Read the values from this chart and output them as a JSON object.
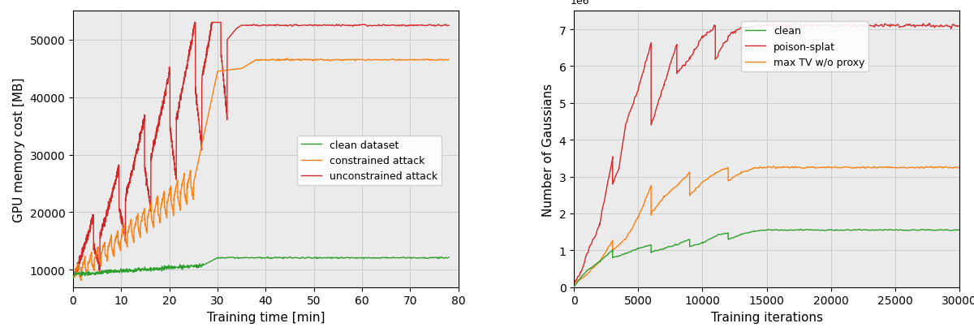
{
  "left": {
    "xlabel": "Training time [min]",
    "ylabel": "GPU memory cost [MB]",
    "xlim": [
      0,
      80
    ],
    "ylim": [
      7000,
      55000
    ],
    "xticks": [
      0,
      10,
      20,
      30,
      40,
      50,
      60,
      70,
      80
    ],
    "yticks": [
      10000,
      20000,
      30000,
      40000,
      50000
    ],
    "legend": [
      "clean dataset",
      "constrained attack",
      "unconstrained attack"
    ],
    "colors": [
      "#2ca02c",
      "#ff7f0e",
      "#d62728"
    ]
  },
  "right": {
    "xlabel": "Training iterations",
    "ylabel": "Number of Gaussians",
    "xlim": [
      0,
      30000
    ],
    "ylim": [
      0,
      7500000
    ],
    "xticks": [
      0,
      5000,
      10000,
      15000,
      20000,
      25000,
      30000
    ],
    "yticks": [
      0,
      1000000,
      2000000,
      3000000,
      4000000,
      5000000,
      6000000,
      7000000
    ],
    "legend": [
      "clean",
      "poison-splat",
      "max TV w/o proxy"
    ],
    "colors": [
      "#2ca02c",
      "#d62728",
      "#ff7f0e"
    ]
  },
  "bg_color": "#ebebeb",
  "grid_color": "#cccccc"
}
